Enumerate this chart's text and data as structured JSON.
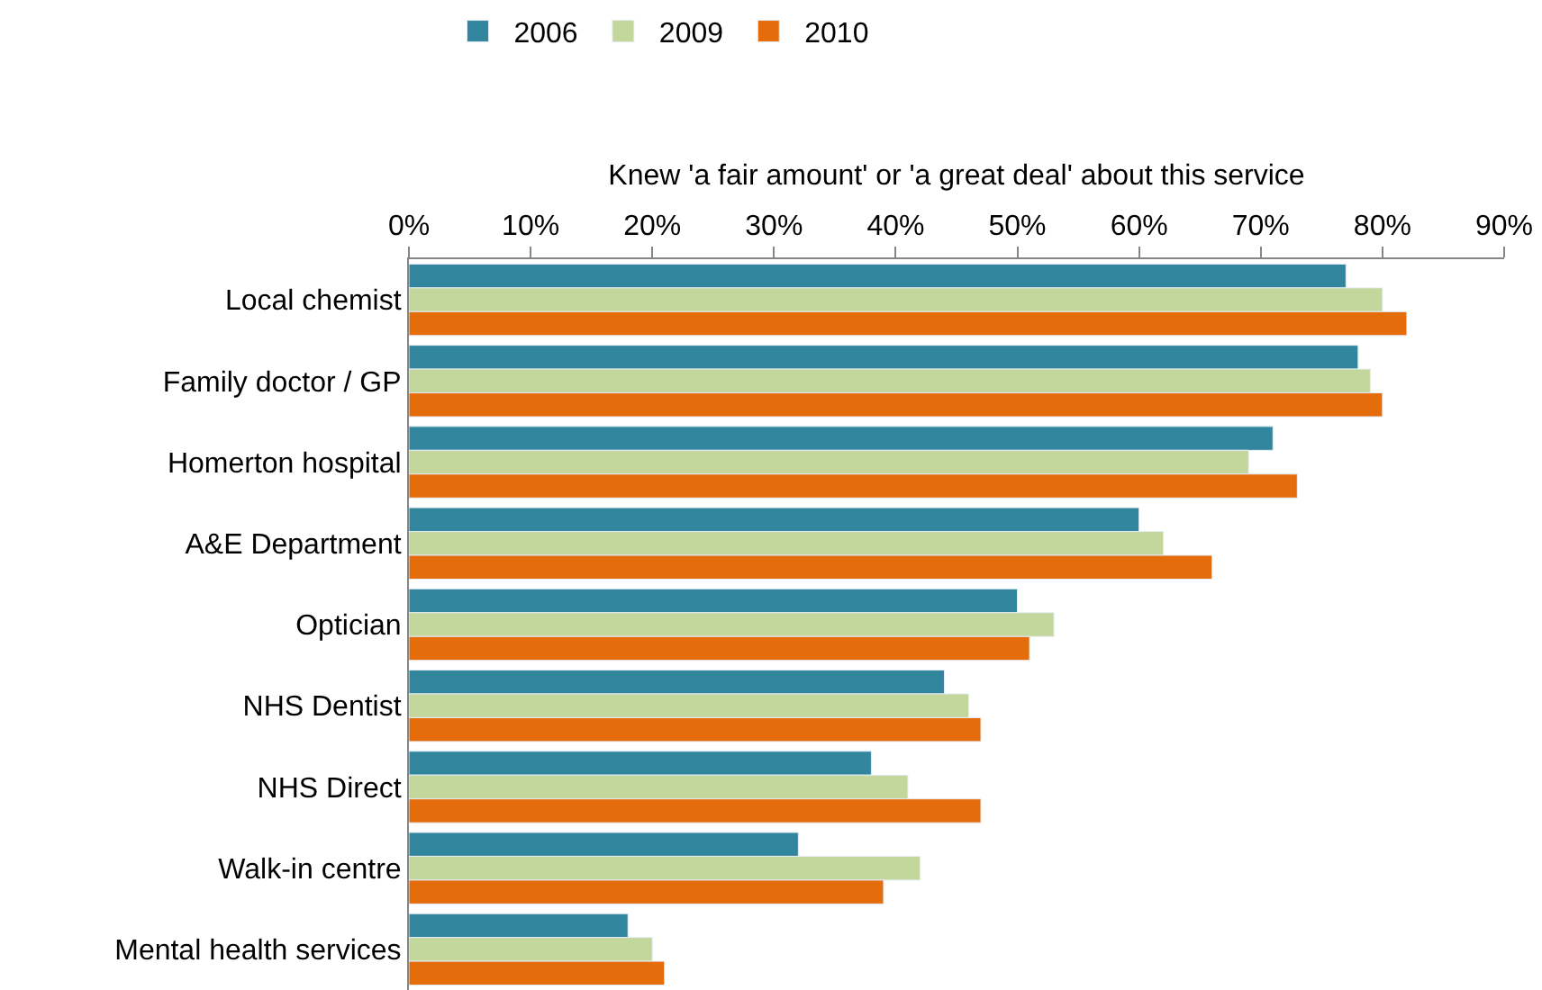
{
  "chart_data": {
    "type": "bar",
    "orientation": "horizontal",
    "xlabel": "Knew 'a fair amount' or 'a great deal' about this service",
    "categories": [
      "Local chemist",
      "Family doctor / GP",
      "Homerton hospital",
      "A&E Department",
      "Optician",
      "NHS Dentist",
      "NHS Direct",
      "Walk-in centre",
      "Mental health services"
    ],
    "series": [
      {
        "name": "2006",
        "color": "#31859c",
        "values": [
          77,
          78,
          71,
          60,
          50,
          44,
          38,
          32,
          18
        ]
      },
      {
        "name": "2009",
        "color": "#c3d69b",
        "values": [
          80,
          79,
          69,
          62,
          53,
          46,
          41,
          42,
          20
        ]
      },
      {
        "name": "2010",
        "color": "#e46c0a",
        "values": [
          82,
          80,
          73,
          66,
          51,
          47,
          47,
          39,
          21
        ]
      }
    ],
    "xlim": [
      0,
      90
    ],
    "xticks": [
      {
        "value": 0,
        "label": "0%"
      },
      {
        "value": 10,
        "label": "10%"
      },
      {
        "value": 20,
        "label": "20%"
      },
      {
        "value": 30,
        "label": "30%"
      },
      {
        "value": 40,
        "label": "40%"
      },
      {
        "value": 50,
        "label": "50%"
      },
      {
        "value": 60,
        "label": "60%"
      },
      {
        "value": 70,
        "label": "70%"
      },
      {
        "value": 80,
        "label": "80%"
      },
      {
        "value": 90,
        "label": "90%"
      }
    ],
    "legend": "top left"
  }
}
